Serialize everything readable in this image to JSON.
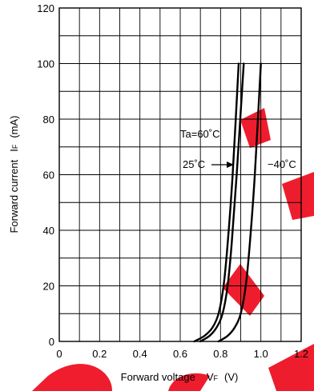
{
  "chart_data": {
    "type": "line",
    "xlabel": {
      "main": "Forward voltage",
      "symbol": "V",
      "sub": "F",
      "unit": "(V)"
    },
    "ylabel": {
      "main": "Forward current",
      "symbol": "I",
      "sub": "F",
      "unit": "(mA)"
    },
    "xlim": [
      0,
      1.2
    ],
    "ylim": [
      0,
      120
    ],
    "x_ticks": [
      "0",
      "0.2",
      "0.4",
      "0.6",
      "0.8",
      "1.0",
      "1.2"
    ],
    "y_ticks": [
      "0",
      "20",
      "40",
      "60",
      "80",
      "100",
      "120"
    ],
    "grid": true,
    "series": [
      {
        "name": "Ta=60˚C",
        "x": [
          0.67,
          0.72,
          0.76,
          0.79,
          0.815,
          0.835,
          0.86,
          0.89
        ],
        "y": [
          0,
          2,
          5,
          10,
          20,
          35,
          60,
          100
        ]
      },
      {
        "name": "25˚C",
        "x": [
          0.7,
          0.745,
          0.78,
          0.81,
          0.835,
          0.855,
          0.88,
          0.915
        ],
        "y": [
          0,
          2,
          5,
          10,
          20,
          35,
          60,
          100
        ]
      },
      {
        "name": "−40˚C",
        "x": [
          0.79,
          0.835,
          0.87,
          0.9,
          0.925,
          0.945,
          0.97,
          1.0
        ],
        "y": [
          0,
          2,
          5,
          10,
          20,
          35,
          60,
          100
        ]
      }
    ],
    "annotations": {
      "ta60": "Ta=60˚C",
      "t25": "25˚C",
      "tm40": "−40˚C"
    }
  }
}
